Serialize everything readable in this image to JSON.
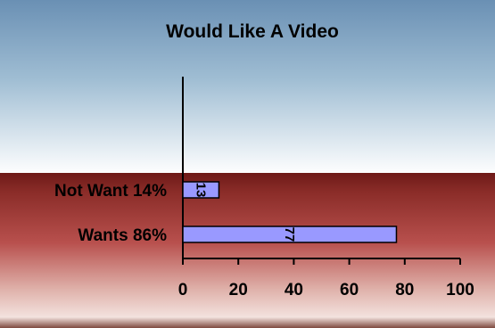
{
  "chart_data": {
    "type": "bar",
    "orientation": "horizontal",
    "title": "Would Like A Video",
    "categories": [
      "Not Want 14%",
      "Wants 86%"
    ],
    "values": [
      13,
      77
    ],
    "data_labels": [
      "13",
      "77"
    ],
    "xlabel": "",
    "ylabel": "",
    "xlim": [
      0,
      100
    ],
    "x_ticks": [
      0,
      20,
      40,
      60,
      80,
      100
    ],
    "grid": false,
    "legend": "none",
    "colors": {
      "bar_fill": "#9999ff",
      "bar_stroke": "#000000",
      "sky_top": "#5b86ac",
      "sky_light": "#ffffff",
      "band_dark": "#7e2420",
      "band_mid": "#b5514f",
      "band_light": "#eed9d4"
    }
  }
}
